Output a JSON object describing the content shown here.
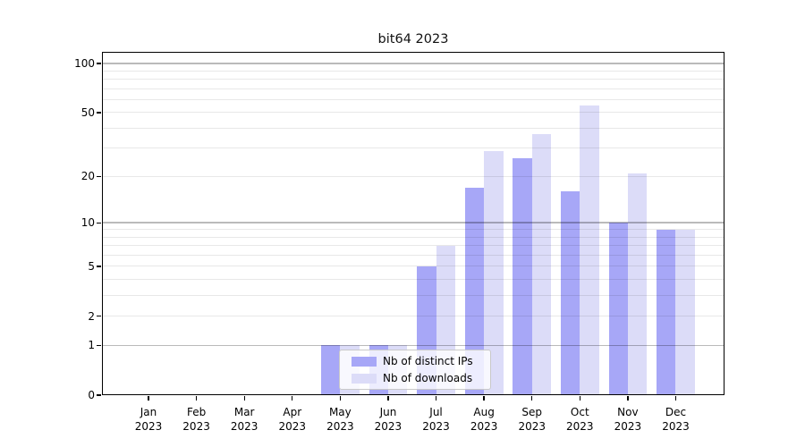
{
  "title": "bit64 2023",
  "chart_data": {
    "type": "bar",
    "title": "bit64 2023",
    "categories": [
      "Jan",
      "Feb",
      "Mar",
      "Apr",
      "May",
      "Jun",
      "Jul",
      "Aug",
      "Sep",
      "Oct",
      "Nov",
      "Dec"
    ],
    "x_tick_second_line": "2023",
    "series": [
      {
        "name": "Nb of distinct IPs",
        "color": "#a7a7f7",
        "values": [
          0,
          0,
          0,
          0,
          1,
          1,
          5,
          17,
          26,
          16,
          10,
          9
        ]
      },
      {
        "name": "Nb of downloads",
        "color": "#dcdcf8",
        "values": [
          0,
          0,
          0,
          0,
          1,
          1,
          7,
          29,
          37,
          55,
          21,
          9
        ]
      }
    ],
    "y_axis": {
      "scale": "log(value+1)",
      "tick_values": [
        100,
        50,
        20,
        10,
        5,
        2,
        1,
        0
      ],
      "tick_labels": [
        "100",
        "50",
        "20",
        "10",
        "5",
        "2",
        "1",
        "0"
      ],
      "major_gridlines": [
        1,
        10,
        100
      ],
      "minor_gridlines": [
        2,
        3,
        4,
        5,
        6,
        7,
        8,
        9,
        20,
        30,
        40,
        50,
        60,
        70,
        80,
        90
      ],
      "ylim": [
        0,
        118
      ]
    },
    "legend": {
      "entries": [
        "Nb of distinct IPs",
        "Nb of downloads"
      ],
      "position": "lower center-left"
    },
    "grid": true,
    "colors": {
      "bar_ips": "#a7a7f7",
      "bar_downloads": "#dcdcf8",
      "major_grid": "rgba(0,0,0,0.27)",
      "minor_grid": "rgba(0,0,0,0.09)",
      "spine": "#000000",
      "legend_border": "#c9c9c9"
    }
  }
}
